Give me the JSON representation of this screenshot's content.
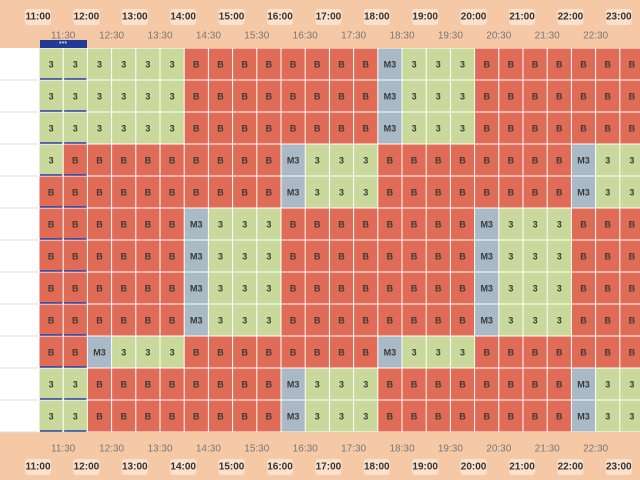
{
  "header": {
    "tag": "***",
    "hours": [
      "11:00",
      "12:00",
      "13:00",
      "14:00",
      "15:00",
      "16:00",
      "17:00",
      "18:00",
      "19:00",
      "20:00",
      "21:00",
      "22:00",
      "23:00"
    ],
    "half_hours": [
      "11:30",
      "12:30",
      "13:30",
      "14:30",
      "15:30",
      "16:30",
      "17:30",
      "18:30",
      "19:30",
      "20:30",
      "21:30",
      "22:30"
    ]
  },
  "colors": {
    "B": "#e06b56",
    "3": "#c9d99b",
    "M3": "#a9b9c6"
  },
  "grid": {
    "rows": [
      [
        "3",
        "3",
        "3",
        "3",
        "3",
        "3",
        "B",
        "B",
        "B",
        "B",
        "B",
        "B",
        "B",
        "B",
        "M3",
        "3",
        "3",
        "3",
        "B",
        "B",
        "B",
        "B",
        "B",
        "B",
        "B"
      ],
      [
        "3",
        "3",
        "3",
        "3",
        "3",
        "3",
        "B",
        "B",
        "B",
        "B",
        "B",
        "B",
        "B",
        "B",
        "M3",
        "3",
        "3",
        "3",
        "B",
        "B",
        "B",
        "B",
        "B",
        "B",
        "B"
      ],
      [
        "3",
        "3",
        "3",
        "3",
        "3",
        "3",
        "B",
        "B",
        "B",
        "B",
        "B",
        "B",
        "B",
        "B",
        "M3",
        "3",
        "3",
        "3",
        "B",
        "B",
        "B",
        "B",
        "B",
        "B",
        "B"
      ],
      [
        "3",
        "B",
        "B",
        "B",
        "B",
        "B",
        "B",
        "B",
        "B",
        "B",
        "M3",
        "3",
        "3",
        "3",
        "B",
        "B",
        "B",
        "B",
        "B",
        "B",
        "B",
        "B",
        "M3",
        "3",
        "3"
      ],
      [
        "B",
        "B",
        "B",
        "B",
        "B",
        "B",
        "B",
        "B",
        "B",
        "B",
        "M3",
        "3",
        "3",
        "3",
        "B",
        "B",
        "B",
        "B",
        "B",
        "B",
        "B",
        "B",
        "M3",
        "3",
        "3"
      ],
      [
        "B",
        "B",
        "B",
        "B",
        "B",
        "B",
        "M3",
        "3",
        "3",
        "3",
        "B",
        "B",
        "B",
        "B",
        "B",
        "B",
        "B",
        "B",
        "M3",
        "3",
        "3",
        "3",
        "B",
        "B",
        "B"
      ],
      [
        "B",
        "B",
        "B",
        "B",
        "B",
        "B",
        "M3",
        "3",
        "3",
        "3",
        "B",
        "B",
        "B",
        "B",
        "B",
        "B",
        "B",
        "B",
        "M3",
        "3",
        "3",
        "3",
        "B",
        "B",
        "B"
      ],
      [
        "B",
        "B",
        "B",
        "B",
        "B",
        "B",
        "M3",
        "3",
        "3",
        "3",
        "B",
        "B",
        "B",
        "B",
        "B",
        "B",
        "B",
        "B",
        "M3",
        "3",
        "3",
        "3",
        "B",
        "B",
        "B"
      ],
      [
        "B",
        "B",
        "B",
        "B",
        "B",
        "B",
        "M3",
        "3",
        "3",
        "3",
        "B",
        "B",
        "B",
        "B",
        "B",
        "B",
        "B",
        "B",
        "M3",
        "3",
        "3",
        "3",
        "B",
        "B",
        "B"
      ],
      [
        "B",
        "B",
        "M3",
        "3",
        "3",
        "3",
        "B",
        "B",
        "B",
        "B",
        "B",
        "B",
        "B",
        "B",
        "M3",
        "3",
        "3",
        "3",
        "B",
        "B",
        "B",
        "B",
        "B",
        "B",
        "B"
      ],
      [
        "3",
        "3",
        "B",
        "B",
        "B",
        "B",
        "B",
        "B",
        "B",
        "B",
        "M3",
        "3",
        "3",
        "3",
        "B",
        "B",
        "B",
        "B",
        "B",
        "B",
        "B",
        "B",
        "M3",
        "3",
        "3"
      ],
      [
        "3",
        "3",
        "B",
        "B",
        "B",
        "B",
        "B",
        "B",
        "B",
        "B",
        "M3",
        "3",
        "3",
        "3",
        "B",
        "B",
        "B",
        "B",
        "B",
        "B",
        "B",
        "B",
        "M3",
        "3",
        "3"
      ]
    ]
  }
}
